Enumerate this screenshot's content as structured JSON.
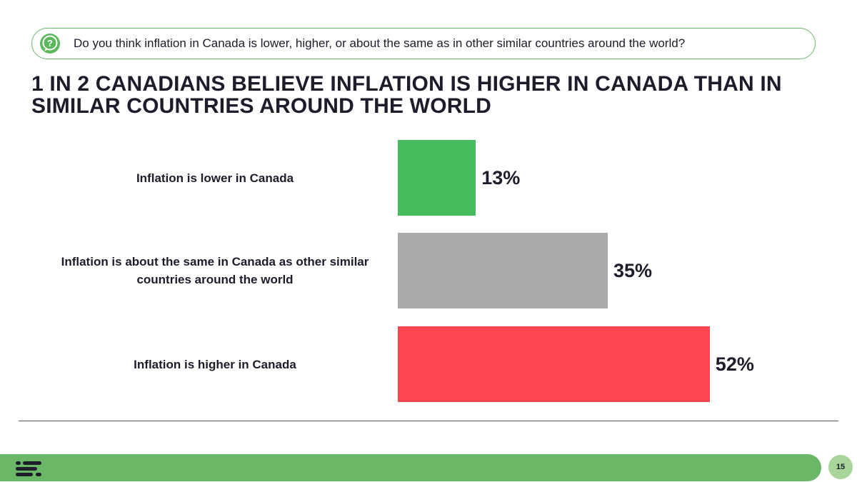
{
  "question": {
    "icon": "question-bubble-icon",
    "text": "Do you think inflation in Canada is lower, higher, or about the same as in other similar countries around the world?"
  },
  "headline": "1 IN 2 CANADIANS BELIEVE INFLATION IS HIGHER IN CANADA THAN IN SIMILAR COUNTRIES AROUND THE WORLD",
  "chart_data": {
    "type": "bar",
    "orientation": "horizontal",
    "categories": [
      "Inflation is lower in Canada",
      "Inflation is about the same in Canada as other similar countries around the world",
      "Inflation is higher in Canada"
    ],
    "values": [
      13,
      35,
      52
    ],
    "value_labels": [
      "13%",
      "35%",
      "52%"
    ],
    "colors": [
      "#45bd5f",
      "#aaaaac",
      "#ff4650"
    ],
    "unit": "%",
    "xlim": [
      0,
      100
    ]
  },
  "footer": {
    "logo_icon": "logo-icon",
    "page_number": "15",
    "bar_color": "#6ab767"
  }
}
